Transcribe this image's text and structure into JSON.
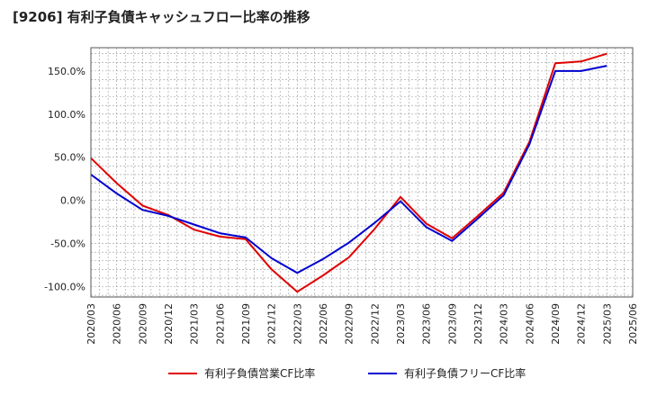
{
  "chart_data": {
    "type": "line",
    "title": "[9206]  有利子負債キャッシュフロー比率の推移",
    "xlabel": "",
    "ylabel": "",
    "ylim": [
      -112,
      177
    ],
    "grid": true,
    "legend_position": "bottom",
    "y_ticks": [
      "150.0%",
      "100.0%",
      "50.0%",
      "0.0%",
      "-50.0%",
      "-100.0%"
    ],
    "y_tick_values": [
      150,
      100,
      50,
      0,
      -50,
      -100
    ],
    "x_ticks": [
      "2020/03",
      "2020/06",
      "2020/09",
      "2020/12",
      "2021/03",
      "2021/06",
      "2021/09",
      "2021/12",
      "2022/03",
      "2022/06",
      "2022/09",
      "2022/12",
      "2023/03",
      "2023/06",
      "2023/09",
      "2023/12",
      "2024/03",
      "2024/06",
      "2024/09",
      "2024/12",
      "2025/03",
      "2025/06"
    ],
    "x": [
      "2020/03",
      "2020/06",
      "2020/09",
      "2020/12",
      "2021/03",
      "2021/06",
      "2021/09",
      "2021/12",
      "2022/03",
      "2022/06",
      "2022/09",
      "2022/12",
      "2023/03",
      "2023/06",
      "2023/09",
      "2023/12",
      "2024/03",
      "2024/06",
      "2024/09",
      "2024/12",
      "2025/03"
    ],
    "series": [
      {
        "name": "有利子負債営業CF比率",
        "color": "#e00000",
        "values": [
          49,
          20,
          -6,
          -17,
          -34,
          -42,
          -45,
          -80,
          -106,
          -87,
          -66,
          -33,
          4,
          -27,
          -44,
          -18,
          9,
          68,
          159,
          161,
          170
        ]
      },
      {
        "name": "有利子負債フリーCF比率",
        "color": "#0000d0",
        "values": [
          30,
          8,
          -11,
          -18,
          -28,
          -38,
          -43,
          -67,
          -84,
          -68,
          -49,
          -26,
          -1,
          -31,
          -47,
          -21,
          6,
          65,
          150,
          150,
          156
        ]
      }
    ]
  }
}
